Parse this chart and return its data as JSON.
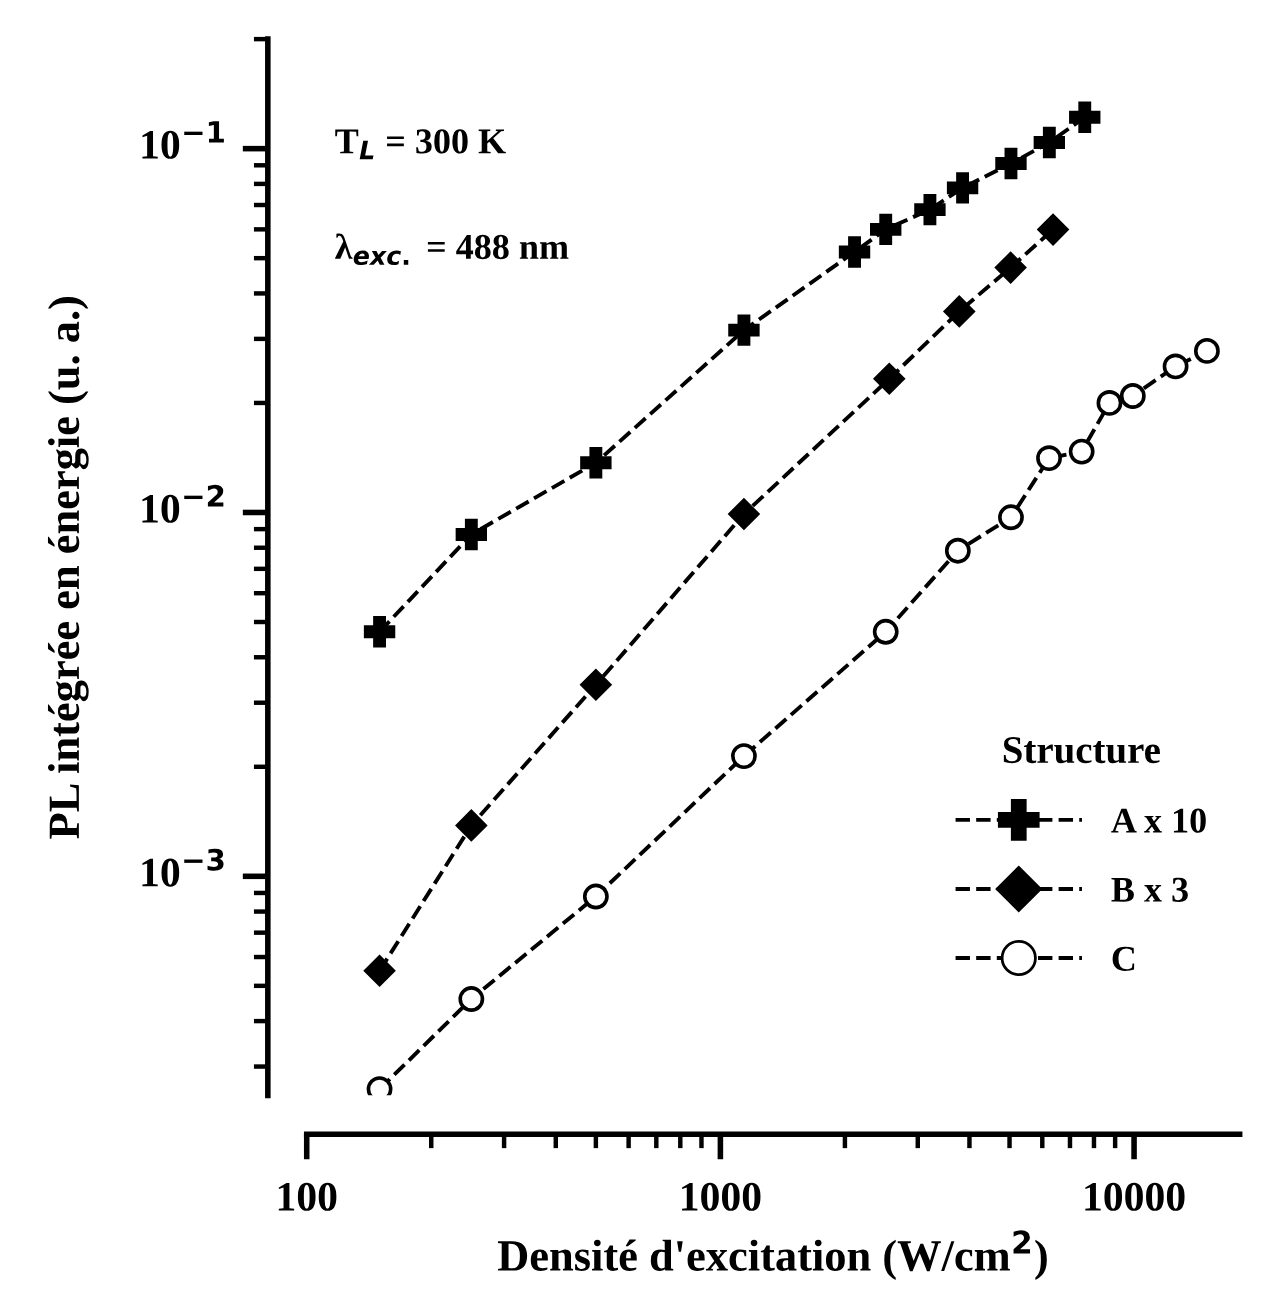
{
  "chart_data": {
    "type": "line",
    "xlabel": "Densité d'excitation (W/cm$^{2}$)",
    "ylabel": "PL intégrée en énergie (u. a.)",
    "legend_title": "Structure",
    "legend": "bottom right",
    "log": "xy",
    "line_style": "dashed",
    "grid": false,
    "xlim": [
      100,
      18000
    ],
    "xticks": [
      100,
      1000,
      10000
    ],
    "ylim": [
      0.00025,
      0.2
    ],
    "yticks": [
      {
        "value": 0.001,
        "label": "10$^{−3}$"
      },
      {
        "value": 0.01,
        "label": "10$^{−2}$"
      },
      {
        "value": 0.1,
        "label": "10$^{−1}$"
      }
    ],
    "annotations": [
      "T$_{L}$ = 300 K",
      "λ$_{exc.}$ = 488 nm"
    ],
    "series": [
      {
        "name": "A x 10",
        "color": "#000000",
        "marker": "cross",
        "x": [
          150,
          250,
          500,
          1140,
          2110,
          2510,
          3210,
          3850,
          5040,
          6240,
          7600
        ],
        "values": [
          0.0047,
          0.0087,
          0.0137,
          0.0317,
          0.052,
          0.06,
          0.068,
          0.078,
          0.091,
          0.104,
          0.122
        ]
      },
      {
        "name": "B x 3",
        "color": "#000000",
        "marker": "diamond",
        "x": [
          150,
          250,
          500,
          1140,
          2560,
          3780,
          5030,
          6370
        ],
        "values": [
          0.00055,
          0.00138,
          0.00336,
          0.0099,
          0.0233,
          0.0357,
          0.0471,
          0.0599
        ]
      },
      {
        "name": "C",
        "color": "#000000",
        "marker": "circle",
        "x": [
          150,
          250,
          500,
          1140,
          2510,
          3750,
          5040,
          6230,
          7470,
          8720,
          9930,
          12600,
          15000
        ],
        "values": [
          0.00026,
          0.00046,
          0.00088,
          0.00214,
          0.0047,
          0.00785,
          0.0097,
          0.0141,
          0.0147,
          0.02,
          0.0209,
          0.0252,
          0.0278
        ]
      }
    ]
  }
}
